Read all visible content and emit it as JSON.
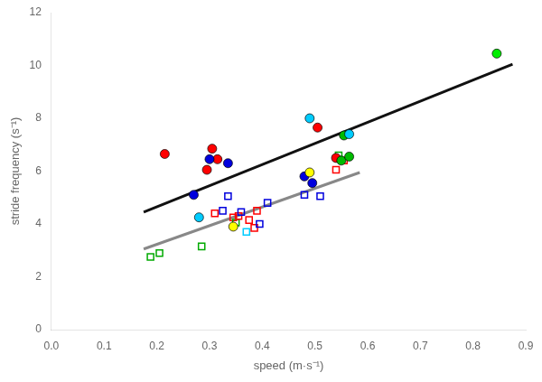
{
  "chart_data": {
    "type": "scatter",
    "xlabel": "speed (m·s⁻¹)",
    "ylabel": "stride frequency (s⁻¹)",
    "xlim": [
      0.0,
      0.9
    ],
    "ylim": [
      0.0,
      12.0
    ],
    "xticks": [
      {
        "value": 0.0,
        "label": "0.0"
      },
      0.1,
      0.2,
      0.3,
      0.4,
      0.5,
      0.6,
      0.7,
      0.8,
      0.9
    ],
    "yticks": [
      0,
      2,
      4,
      6,
      8,
      10,
      12
    ],
    "grid": false,
    "series": [
      {
        "type": "line",
        "color": "#111111",
        "x": [
          0.175,
          0.875
        ],
        "values": [
          4.45,
          10.05
        ]
      },
      {
        "type": "line",
        "color": "#888888",
        "x": [
          0.175,
          0.585
        ],
        "values": [
          3.05,
          5.95
        ]
      },
      {
        "type": "scatter",
        "marker": "square",
        "x": [
          0.188,
          0.205,
          0.285,
          0.31,
          0.325,
          0.335,
          0.345,
          0.35,
          0.355,
          0.36,
          0.37,
          0.375,
          0.385,
          0.39,
          0.395,
          0.41,
          0.48,
          0.51,
          0.54,
          0.555,
          0.545
        ],
        "values": [
          2.75,
          2.9,
          3.15,
          4.4,
          4.5,
          5.05,
          4.25,
          4.05,
          4.3,
          4.45,
          3.7,
          4.15,
          3.85,
          4.5,
          4.0,
          4.8,
          5.1,
          5.05,
          6.05,
          6.4,
          6.6
        ],
        "colors": [
          "#00aa00",
          "#00aa00",
          "#00aa00",
          "#ff0000",
          "#0000dd",
          "#0000dd",
          "#ff0000",
          "#00aa00",
          "#ff0000",
          "#0000dd",
          "#00ccff",
          "#ff0000",
          "#ff0000",
          "#ff0000",
          "#0000dd",
          "#0000dd",
          "#0000dd",
          "#0000dd",
          "#ff0000",
          "#ff0000",
          "#00aa00"
        ]
      },
      {
        "type": "scatter",
        "marker": "circle",
        "x": [
          0.215,
          0.305,
          0.315,
          0.295,
          0.3,
          0.335,
          0.27,
          0.48,
          0.495,
          0.49,
          0.505,
          0.28,
          0.345,
          0.49,
          0.54,
          0.55,
          0.565,
          0.555,
          0.845,
          0.565
        ],
        "values": [
          6.65,
          6.85,
          6.45,
          6.05,
          6.45,
          6.3,
          5.1,
          5.8,
          5.55,
          8.0,
          7.65,
          4.25,
          3.9,
          5.95,
          6.5,
          6.4,
          6.55,
          7.35,
          10.45,
          7.4
        ],
        "colors": [
          "#ff0000",
          "#ff0000",
          "#ff0000",
          "#ff0000",
          "#0000dd",
          "#0000dd",
          "#0000dd",
          "#0000dd",
          "#0000dd",
          "#00ccff",
          "#ff0000",
          "#00ccff",
          "#ffff00",
          "#ffff00",
          "#ff0000",
          "#00bb00",
          "#00bb00",
          "#00bb00",
          "#00ee00",
          "#00ccff"
        ]
      }
    ]
  }
}
